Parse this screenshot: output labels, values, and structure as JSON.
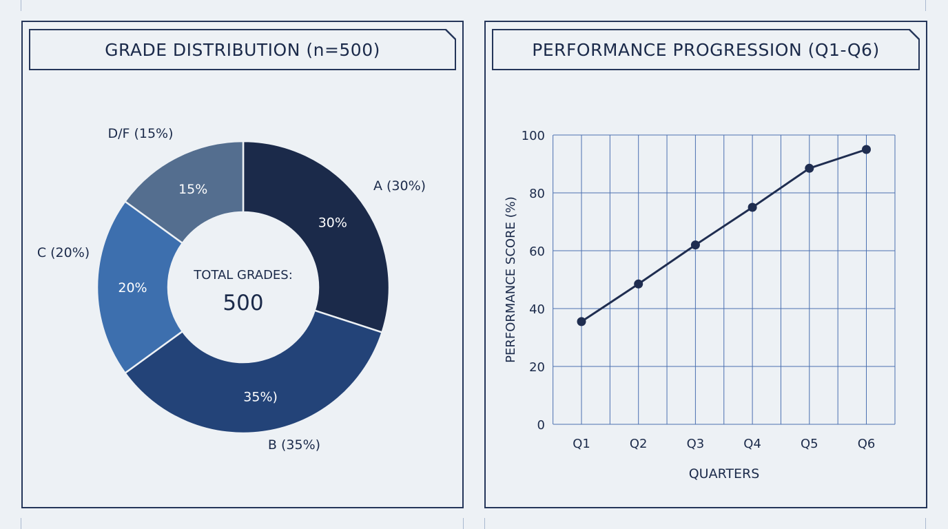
{
  "colors": {
    "background": "#edf1f5",
    "frame": "#243559",
    "grid": "#4a6fb0",
    "line": "#1f2d50",
    "slice_a": "#1b2a4a",
    "slice_b": "#234378",
    "slice_c": "#3d6fae",
    "slice_df": "#546e8f"
  },
  "donut": {
    "title": "GRADE DISTRIBUTION (n=500)",
    "center_label": "TOTAL GRADES:",
    "center_value": "500"
  },
  "line": {
    "title": "PERFORMANCE PROGRESSION (Q1-Q6)"
  },
  "chart_data": [
    {
      "type": "pie",
      "title": "GRADE DISTRIBUTION (n=500)",
      "total": 500,
      "slices": [
        {
          "label": "A (30%)",
          "value": 30,
          "inner_label": "30%",
          "color": "#1b2a4a"
        },
        {
          "label": "B (35%)",
          "value": 35,
          "inner_label": "35%)",
          "color": "#234378"
        },
        {
          "label": "C (20%)",
          "value": 20,
          "inner_label": "20%",
          "color": "#3d6fae"
        },
        {
          "label": "D/F (15%)",
          "value": 15,
          "inner_label": "15%",
          "color": "#546e8f"
        }
      ]
    },
    {
      "type": "line",
      "title": "PERFORMANCE PROGRESSION (Q1-Q6)",
      "categories": [
        "Q1",
        "Q2",
        "Q3",
        "Q4",
        "Q5",
        "Q6"
      ],
      "series": [
        {
          "values": [
            35.5,
            48.5,
            62,
            75,
            88.5,
            95
          ]
        }
      ],
      "xlabel": "QUARTERS",
      "ylabel": "PERFORMANCE SCORE (%)",
      "ylim": [
        0,
        100
      ],
      "yticks": [
        0,
        20,
        40,
        60,
        80,
        100
      ],
      "grid": true
    }
  ]
}
